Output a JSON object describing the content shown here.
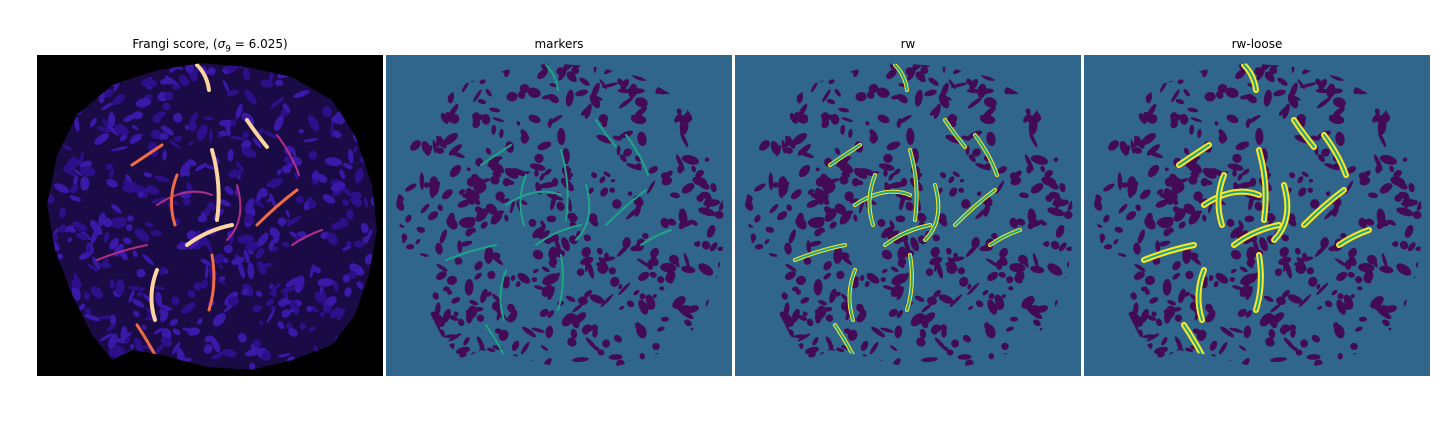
{
  "panels": [
    {
      "id": "frangi",
      "title_prefix": "Frangi score, (",
      "title_sigma": "σ",
      "title_sub": "9",
      "title_suffix": " = 6.025)",
      "background_color": "#000000",
      "blob_color": "#2a0c7a",
      "vessel_colors": [
        "#b02f86",
        "#ef6c45",
        "#fcd5a0"
      ]
    },
    {
      "id": "markers",
      "title": "markers",
      "background_color": "#30668b",
      "blob_color": "#430b55",
      "vessel_colors": [
        "#20a486"
      ]
    },
    {
      "id": "rw",
      "title": "rw",
      "background_color": "#30668b",
      "blob_color": "#430b55",
      "vessel_colors": [
        "#20a486",
        "#fde725"
      ]
    },
    {
      "id": "rw-loose",
      "title": "rw-loose",
      "background_color": "#30668b",
      "blob_color": "#430b55",
      "vessel_colors": [
        "#20a486",
        "#fde725"
      ]
    }
  ]
}
